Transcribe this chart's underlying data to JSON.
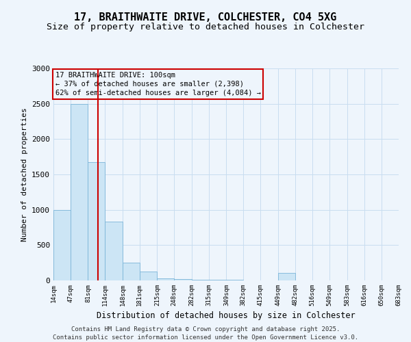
{
  "title_line1": "17, BRAITHWAITE DRIVE, COLCHESTER, CO4 5XG",
  "title_line2": "Size of property relative to detached houses in Colchester",
  "xlabel": "Distribution of detached houses by size in Colchester",
  "ylabel": "Number of detached properties",
  "bar_color": "#cce5f5",
  "bar_edgecolor": "#7ab4d8",
  "vline_color": "#cc0000",
  "vline_x": 100,
  "annotation_title": "17 BRAITHWAITE DRIVE: 100sqm",
  "annotation_line2": "← 37% of detached houses are smaller (2,398)",
  "annotation_line3": "62% of semi-detached houses are larger (4,084) →",
  "annotation_box_color": "#cc0000",
  "grid_color": "#c8ddf0",
  "background_color": "#eef5fc",
  "footer_line1": "Contains HM Land Registry data © Crown copyright and database right 2025.",
  "footer_line2": "Contains public sector information licensed under the Open Government Licence v3.0.",
  "bin_edges": [
    14,
    47,
    81,
    114,
    148,
    181,
    215,
    248,
    282,
    315,
    349,
    382,
    415,
    449,
    482,
    516,
    549,
    583,
    616,
    650,
    683
  ],
  "bin_labels": [
    "14sqm",
    "47sqm",
    "81sqm",
    "114sqm",
    "148sqm",
    "181sqm",
    "215sqm",
    "248sqm",
    "282sqm",
    "315sqm",
    "349sqm",
    "382sqm",
    "415sqm",
    "449sqm",
    "482sqm",
    "516sqm",
    "549sqm",
    "583sqm",
    "616sqm",
    "650sqm",
    "683sqm"
  ],
  "bar_heights": [
    1000,
    2500,
    1670,
    830,
    250,
    130,
    30,
    15,
    10,
    5,
    5,
    3,
    3,
    110,
    2,
    2,
    1,
    1,
    1,
    1
  ],
  "ylim": [
    0,
    3000
  ],
  "yticks": [
    0,
    500,
    1000,
    1500,
    2000,
    2500,
    3000
  ],
  "title_fontsize": 11,
  "subtitle_fontsize": 9.5,
  "ann_fontsize": 7.5,
  "footer_fontsize": 6.5
}
